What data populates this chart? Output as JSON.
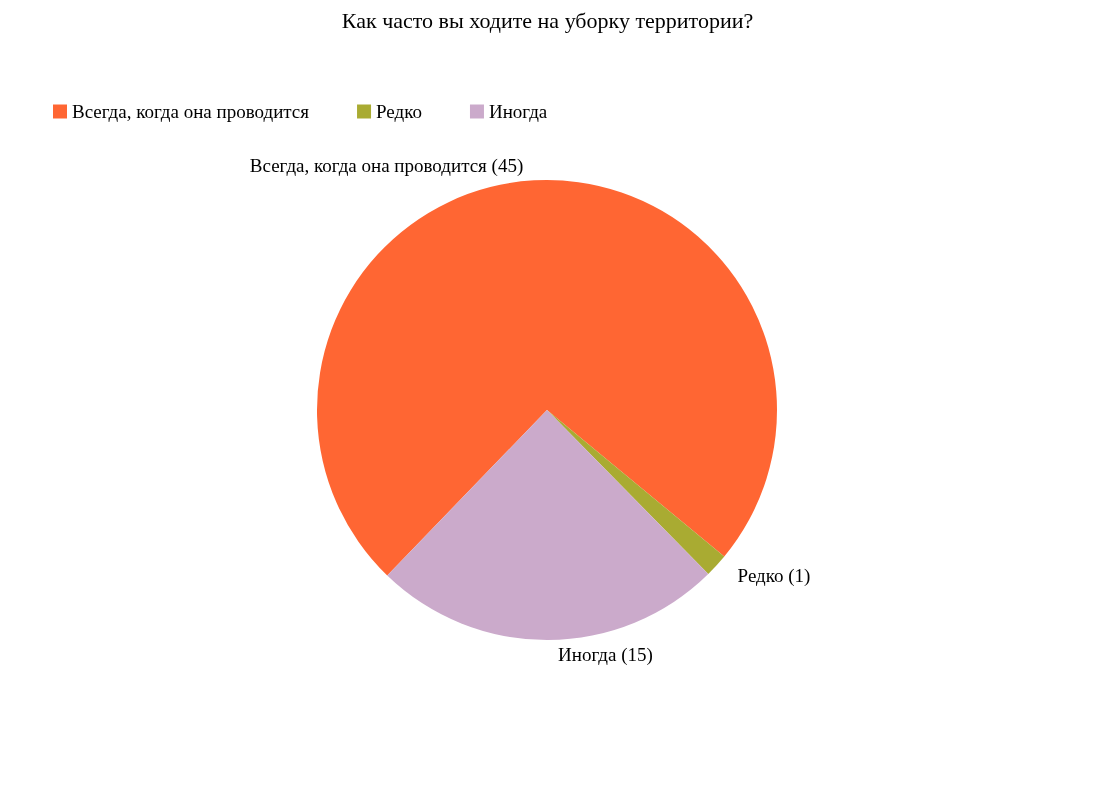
{
  "chart_data": {
    "type": "pie",
    "title": "Как часто вы ходите на уборку территории?",
    "categories": [
      "Всегда, когда она проводится",
      "Редко",
      "Иногда"
    ],
    "values": [
      45,
      1,
      15
    ],
    "colors": [
      "#ff6633",
      "#a9ab32",
      "#cbaacb"
    ],
    "value_labels": [
      "(45)",
      "(1)",
      "(15)"
    ],
    "legend": "top left"
  }
}
